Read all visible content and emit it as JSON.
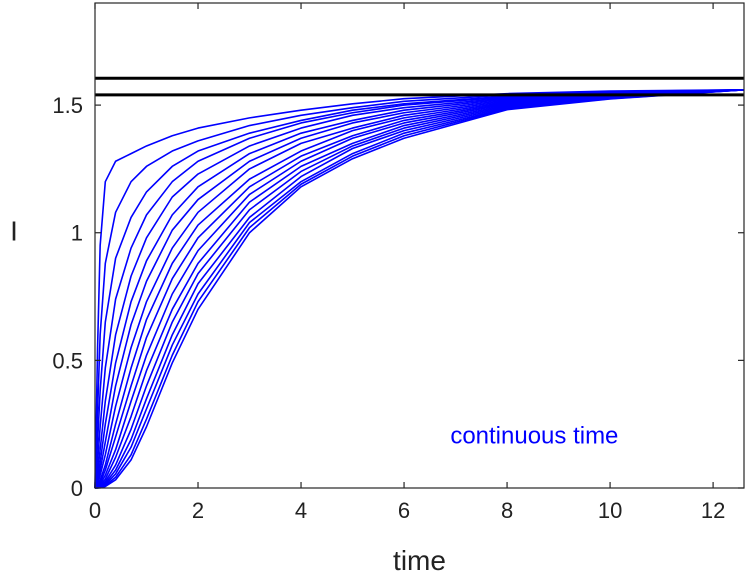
{
  "chart_data": {
    "type": "line",
    "title": "",
    "xlabel": "time",
    "ylabel": "I",
    "xlim": [
      0,
      12.6
    ],
    "ylim": [
      0,
      1.9
    ],
    "xticks": [
      0,
      2,
      4,
      6,
      8,
      10,
      12
    ],
    "yticks": [
      0,
      0.5,
      1,
      1.5
    ],
    "ytick_labels": [
      "0",
      "0.5",
      "1",
      "1.5"
    ],
    "grid": false,
    "legend": "none",
    "annotation": "continuous time",
    "annotation_color": "#0000ff",
    "series_color": "#0000ff",
    "reference_color": "#000000",
    "reference_lines": [
      {
        "y": 1.605
      },
      {
        "y": 1.54
      }
    ],
    "series": [
      {
        "x": [
          0,
          0.05,
          0.1,
          0.2,
          0.4,
          0.7,
          1,
          1.5,
          2,
          3,
          4,
          5,
          6,
          8,
          10,
          12.6
        ],
        "values": [
          0,
          0.55,
          0.95,
          1.2,
          1.28,
          1.31,
          1.34,
          1.38,
          1.41,
          1.45,
          1.48,
          1.505,
          1.525,
          1.545,
          1.555,
          1.56
        ]
      },
      {
        "x": [
          0,
          0.05,
          0.1,
          0.2,
          0.4,
          0.7,
          1,
          1.5,
          2,
          3,
          4,
          5,
          6,
          8,
          10,
          12.6
        ],
        "values": [
          0,
          0.3,
          0.6,
          0.88,
          1.08,
          1.2,
          1.26,
          1.32,
          1.36,
          1.42,
          1.46,
          1.49,
          1.515,
          1.54,
          1.553,
          1.56
        ]
      },
      {
        "x": [
          0,
          0.05,
          0.1,
          0.2,
          0.4,
          0.7,
          1,
          1.5,
          2,
          3,
          4,
          5,
          6,
          8,
          10,
          12.6
        ],
        "values": [
          0,
          0.18,
          0.38,
          0.65,
          0.9,
          1.06,
          1.16,
          1.26,
          1.32,
          1.39,
          1.44,
          1.48,
          1.505,
          1.535,
          1.55,
          1.56
        ]
      },
      {
        "x": [
          0,
          0.05,
          0.1,
          0.2,
          0.4,
          0.7,
          1,
          1.5,
          2,
          3,
          4,
          5,
          6,
          8,
          10,
          12.6
        ],
        "values": [
          0,
          0.1,
          0.24,
          0.47,
          0.74,
          0.94,
          1.07,
          1.2,
          1.28,
          1.37,
          1.43,
          1.47,
          1.5,
          1.532,
          1.548,
          1.56
        ]
      },
      {
        "x": [
          0,
          0.05,
          0.1,
          0.2,
          0.4,
          0.7,
          1,
          1.5,
          2,
          3,
          4,
          5,
          6,
          8,
          10,
          12.6
        ],
        "values": [
          0,
          0.06,
          0.15,
          0.34,
          0.6,
          0.83,
          0.98,
          1.14,
          1.23,
          1.34,
          1.41,
          1.46,
          1.49,
          1.528,
          1.546,
          1.56
        ]
      },
      {
        "x": [
          0,
          0.05,
          0.1,
          0.2,
          0.4,
          0.7,
          1,
          1.5,
          2,
          3,
          4,
          5,
          6,
          8,
          10,
          12.6
        ],
        "values": [
          0,
          0.04,
          0.1,
          0.25,
          0.49,
          0.73,
          0.89,
          1.07,
          1.18,
          1.31,
          1.39,
          1.44,
          1.48,
          1.524,
          1.544,
          1.56
        ]
      },
      {
        "x": [
          0,
          0.05,
          0.1,
          0.2,
          0.4,
          0.7,
          1,
          1.5,
          2,
          3,
          4,
          5,
          6,
          8,
          10,
          12.6
        ],
        "values": [
          0,
          0.02,
          0.07,
          0.18,
          0.4,
          0.64,
          0.81,
          1.01,
          1.13,
          1.28,
          1.37,
          1.43,
          1.47,
          1.52,
          1.542,
          1.56
        ]
      },
      {
        "x": [
          0,
          0.05,
          0.1,
          0.2,
          0.4,
          0.7,
          1,
          1.5,
          2,
          3,
          4,
          5,
          6,
          8,
          10,
          12.6
        ],
        "values": [
          0,
          0.015,
          0.05,
          0.13,
          0.32,
          0.55,
          0.73,
          0.94,
          1.08,
          1.25,
          1.35,
          1.41,
          1.46,
          1.516,
          1.54,
          1.56
        ]
      },
      {
        "x": [
          0,
          0.05,
          0.1,
          0.2,
          0.4,
          0.7,
          1,
          1.5,
          2,
          3,
          4,
          5,
          6,
          8,
          10,
          12.6
        ],
        "values": [
          0,
          0.01,
          0.03,
          0.09,
          0.25,
          0.47,
          0.66,
          0.88,
          1.03,
          1.21,
          1.32,
          1.4,
          1.45,
          1.512,
          1.538,
          1.56
        ]
      },
      {
        "x": [
          0,
          0.05,
          0.1,
          0.2,
          0.4,
          0.7,
          1,
          1.5,
          2,
          3,
          4,
          5,
          6,
          8,
          10,
          12.6
        ],
        "values": [
          0,
          0.006,
          0.02,
          0.07,
          0.2,
          0.4,
          0.59,
          0.82,
          0.98,
          1.18,
          1.3,
          1.38,
          1.44,
          1.508,
          1.536,
          1.56
        ]
      },
      {
        "x": [
          0,
          0.05,
          0.1,
          0.2,
          0.4,
          0.7,
          1,
          1.5,
          2,
          3,
          4,
          5,
          6,
          8,
          10,
          12.6
        ],
        "values": [
          0,
          0.004,
          0.014,
          0.05,
          0.15,
          0.34,
          0.52,
          0.76,
          0.93,
          1.15,
          1.28,
          1.37,
          1.43,
          1.504,
          1.534,
          1.56
        ]
      },
      {
        "x": [
          0,
          0.05,
          0.1,
          0.2,
          0.4,
          0.7,
          1,
          1.5,
          2,
          3,
          4,
          5,
          6,
          8,
          10,
          12.6
        ],
        "values": [
          0,
          0.003,
          0.01,
          0.035,
          0.12,
          0.28,
          0.46,
          0.7,
          0.88,
          1.12,
          1.26,
          1.35,
          1.42,
          1.5,
          1.532,
          1.56
        ]
      },
      {
        "x": [
          0,
          0.05,
          0.1,
          0.2,
          0.4,
          0.7,
          1,
          1.5,
          2,
          3,
          4,
          5,
          6,
          8,
          10,
          12.6
        ],
        "values": [
          0,
          0.002,
          0.007,
          0.025,
          0.09,
          0.23,
          0.4,
          0.65,
          0.84,
          1.09,
          1.24,
          1.34,
          1.41,
          1.496,
          1.53,
          1.56
        ]
      },
      {
        "x": [
          0,
          0.05,
          0.1,
          0.2,
          0.4,
          0.7,
          1,
          1.5,
          2,
          3,
          4,
          5,
          6,
          8,
          10,
          12.6
        ],
        "values": [
          0,
          0.001,
          0.005,
          0.018,
          0.07,
          0.19,
          0.35,
          0.6,
          0.8,
          1.06,
          1.22,
          1.33,
          1.4,
          1.492,
          1.528,
          1.56
        ]
      },
      {
        "x": [
          0,
          0.05,
          0.1,
          0.2,
          0.4,
          0.7,
          1,
          1.5,
          2,
          3,
          4,
          5,
          6,
          8,
          10,
          12.6
        ],
        "values": [
          0,
          0.001,
          0.003,
          0.013,
          0.055,
          0.16,
          0.31,
          0.56,
          0.76,
          1.04,
          1.2,
          1.31,
          1.39,
          1.488,
          1.526,
          1.56
        ]
      },
      {
        "x": [
          0,
          0.05,
          0.1,
          0.2,
          0.4,
          0.7,
          1,
          1.5,
          2,
          3,
          4,
          5,
          6,
          8,
          10,
          12.6
        ],
        "values": [
          0,
          0.0,
          0.002,
          0.009,
          0.042,
          0.13,
          0.27,
          0.52,
          0.73,
          1.02,
          1.19,
          1.3,
          1.38,
          1.485,
          1.525,
          1.56
        ]
      },
      {
        "x": [
          0,
          0.05,
          0.1,
          0.2,
          0.4,
          0.7,
          1,
          1.5,
          2,
          3,
          4,
          5,
          6,
          8,
          10,
          12.6
        ],
        "values": [
          0,
          0.0,
          0.001,
          0.006,
          0.032,
          0.11,
          0.24,
          0.49,
          0.7,
          1.0,
          1.18,
          1.29,
          1.37,
          1.482,
          1.524,
          1.56
        ]
      }
    ]
  }
}
